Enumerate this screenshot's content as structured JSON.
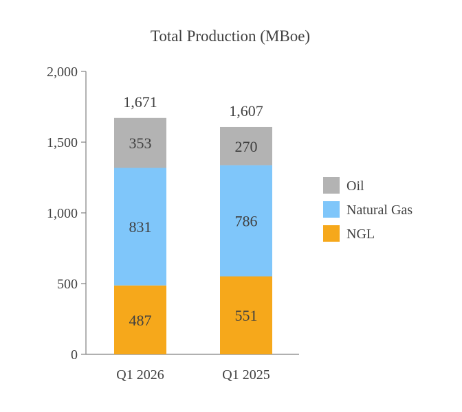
{
  "chart_data": {
    "type": "bar",
    "stacked": true,
    "title": "Total Production (MBoe)",
    "categories": [
      "Q1 2026",
      "Q1 2025"
    ],
    "series": [
      {
        "name": "NGL",
        "values": [
          487,
          551
        ],
        "color": "#F6A81B"
      },
      {
        "name": "Natural Gas",
        "values": [
          831,
          786
        ],
        "color": "#7FC6FA"
      },
      {
        "name": "Oil",
        "values": [
          353,
          270
        ],
        "color": "#B3B3B3"
      }
    ],
    "totals": [
      "1,671",
      "1,607"
    ],
    "segment_labels": [
      [
        "487",
        "831",
        "353"
      ],
      [
        "551",
        "786",
        "270"
      ]
    ],
    "ylim": [
      0,
      2000
    ],
    "yticks": [
      0,
      500,
      1000,
      1500,
      2000
    ],
    "ytick_labels": [
      "0",
      "500",
      "1,000",
      "1,500",
      "2,000"
    ],
    "legend": [
      "Oil",
      "Natural Gas",
      "NGL"
    ],
    "legend_position": "right",
    "grid": false
  }
}
